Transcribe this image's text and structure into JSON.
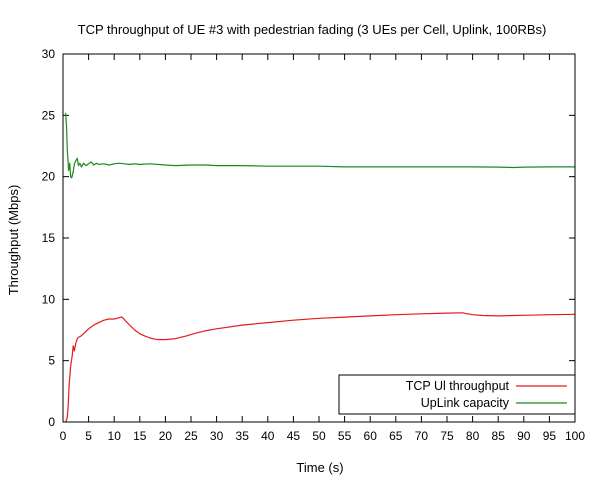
{
  "chart_data": {
    "type": "line",
    "title": "TCP throughput of UE #3 with pedestrian fading (3 UEs per Cell, Uplink, 100RBs)",
    "xlabel": "Time (s)",
    "ylabel": "Throughput (Mbps)",
    "xlim": [
      0,
      100
    ],
    "ylim": [
      0,
      30
    ],
    "xticks": [
      0,
      5,
      10,
      15,
      20,
      25,
      30,
      35,
      40,
      45,
      50,
      55,
      60,
      65,
      70,
      75,
      80,
      85,
      90,
      95,
      100
    ],
    "yticks": [
      0,
      5,
      10,
      15,
      20,
      25,
      30
    ],
    "grid": false,
    "legend_position": "bottom-right",
    "series": [
      {
        "name": "TCP Ul throughput",
        "color": "#e41a1c",
        "points": [
          [
            0.5,
            0
          ],
          [
            0.8,
            0.3
          ],
          [
            1,
            1.2
          ],
          [
            1.2,
            3
          ],
          [
            1.5,
            4.6
          ],
          [
            1.8,
            5.4
          ],
          [
            2,
            6.2
          ],
          [
            2.2,
            5.8
          ],
          [
            2.5,
            6.4
          ],
          [
            2.8,
            6.8
          ],
          [
            3,
            6.9
          ],
          [
            3.5,
            7.0
          ],
          [
            4,
            7.2
          ],
          [
            5,
            7.6
          ],
          [
            6,
            7.9
          ],
          [
            7,
            8.1
          ],
          [
            8,
            8.3
          ],
          [
            9,
            8.4
          ],
          [
            10,
            8.4
          ],
          [
            11,
            8.5
          ],
          [
            11.5,
            8.55
          ],
          [
            12,
            8.35
          ],
          [
            13,
            7.9
          ],
          [
            14,
            7.5
          ],
          [
            15,
            7.2
          ],
          [
            16,
            7.0
          ],
          [
            17,
            6.85
          ],
          [
            18,
            6.75
          ],
          [
            19,
            6.72
          ],
          [
            20,
            6.72
          ],
          [
            22,
            6.8
          ],
          [
            24,
            7.0
          ],
          [
            26,
            7.25
          ],
          [
            28,
            7.45
          ],
          [
            30,
            7.6
          ],
          [
            35,
            7.9
          ],
          [
            40,
            8.1
          ],
          [
            45,
            8.3
          ],
          [
            50,
            8.45
          ],
          [
            55,
            8.55
          ],
          [
            60,
            8.65
          ],
          [
            65,
            8.75
          ],
          [
            70,
            8.82
          ],
          [
            75,
            8.88
          ],
          [
            78,
            8.9
          ],
          [
            79,
            8.82
          ],
          [
            80,
            8.75
          ],
          [
            82,
            8.68
          ],
          [
            85,
            8.65
          ],
          [
            88,
            8.68
          ],
          [
            90,
            8.7
          ],
          [
            95,
            8.75
          ],
          [
            100,
            8.78
          ]
        ]
      },
      {
        "name": "UpLink capacity",
        "color": "#1a8a1a",
        "points": [
          [
            0.5,
            25.2
          ],
          [
            0.7,
            24
          ],
          [
            0.85,
            22
          ],
          [
            1,
            21.2
          ],
          [
            1.1,
            20.5
          ],
          [
            1.3,
            21.1
          ],
          [
            1.5,
            20
          ],
          [
            1.7,
            19.9
          ],
          [
            2,
            20.4
          ],
          [
            2.2,
            21.0
          ],
          [
            2.5,
            21.3
          ],
          [
            2.8,
            21.5
          ],
          [
            3,
            20.9
          ],
          [
            3.3,
            21.1
          ],
          [
            3.6,
            20.8
          ],
          [
            4,
            21.1
          ],
          [
            4.5,
            20.9
          ],
          [
            5,
            21.05
          ],
          [
            5.5,
            21.2
          ],
          [
            6,
            20.95
          ],
          [
            6.5,
            21.1
          ],
          [
            7,
            21.0
          ],
          [
            8,
            21.05
          ],
          [
            9,
            20.95
          ],
          [
            10,
            21.05
          ],
          [
            11,
            21.1
          ],
          [
            12,
            21.05
          ],
          [
            13,
            21.0
          ],
          [
            14,
            21.05
          ],
          [
            15,
            21.0
          ],
          [
            17,
            21.05
          ],
          [
            20,
            20.95
          ],
          [
            22,
            20.9
          ],
          [
            25,
            20.95
          ],
          [
            28,
            20.95
          ],
          [
            30,
            20.9
          ],
          [
            35,
            20.9
          ],
          [
            40,
            20.85
          ],
          [
            45,
            20.85
          ],
          [
            50,
            20.85
          ],
          [
            55,
            20.8
          ],
          [
            60,
            20.8
          ],
          [
            65,
            20.8
          ],
          [
            70,
            20.8
          ],
          [
            75,
            20.8
          ],
          [
            80,
            20.8
          ],
          [
            85,
            20.78
          ],
          [
            88,
            20.75
          ],
          [
            90,
            20.78
          ],
          [
            95,
            20.8
          ],
          [
            100,
            20.8
          ]
        ]
      }
    ]
  }
}
